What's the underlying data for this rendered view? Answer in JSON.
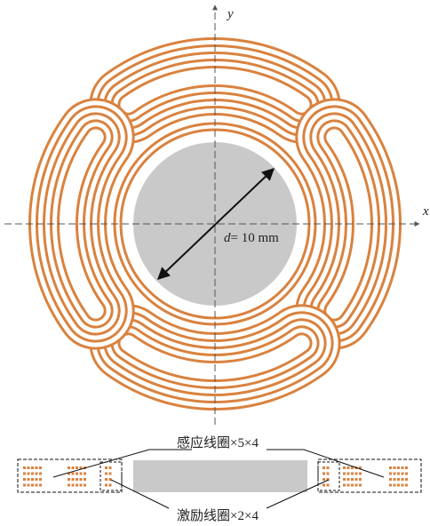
{
  "axes": {
    "x": "x",
    "y": "y"
  },
  "dimension": {
    "variable": "d",
    "text": "= 10 mm"
  },
  "labels": {
    "sensing_coil": "感应线圈×5×4",
    "excitation_coil": "激励线圈×2×4"
  }
}
